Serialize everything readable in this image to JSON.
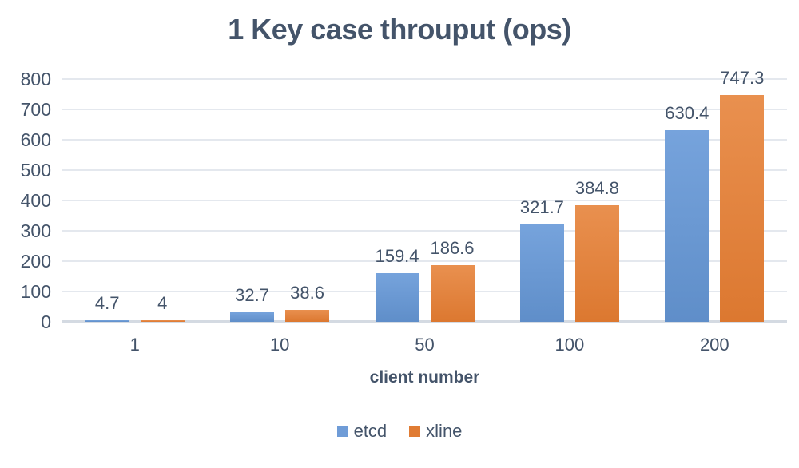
{
  "chart_data": {
    "type": "bar",
    "title": "1 Key case throuput (ops)",
    "xlabel": "client number",
    "ylabel": "",
    "categories": [
      "1",
      "10",
      "50",
      "100",
      "200"
    ],
    "series": [
      {
        "name": "etcd",
        "values": [
          4.7,
          32.7,
          159.4,
          321.7,
          630.4
        ],
        "legend_color": "#6F9CD7",
        "fill_top": "#76A3DC",
        "fill_bottom": "#5F8EC9"
      },
      {
        "name": "xline",
        "values": [
          4,
          38.6,
          186.6,
          384.8,
          747.3
        ],
        "legend_color": "#E07C34",
        "fill_top": "#E9904F",
        "fill_bottom": "#DC7830"
      }
    ],
    "ylim": [
      0,
      800
    ],
    "ytick_step": 100,
    "grid": true,
    "legend_position": "bottom",
    "text_color": "#44546A",
    "grid_color": "#E4E8EE",
    "axis_line_color": "#D4DAE2"
  }
}
